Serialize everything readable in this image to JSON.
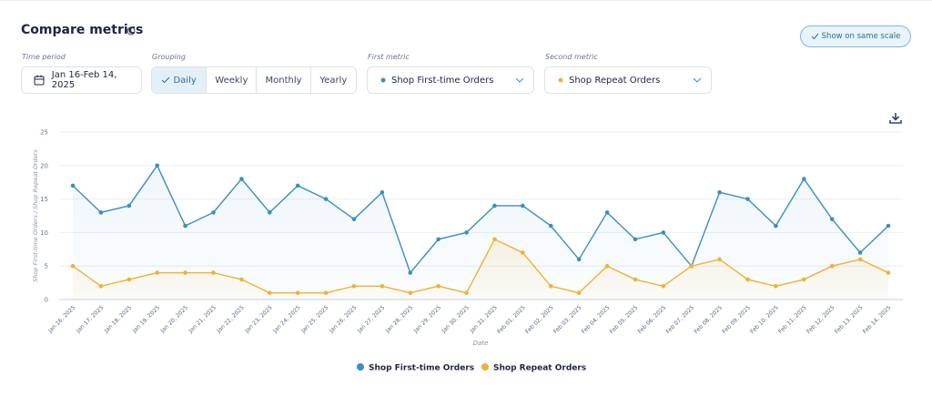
{
  "header": {
    "title": "Compare metrics",
    "button": "Show on same scale"
  },
  "filters": {
    "time_period": {
      "label": "Time period",
      "value": "Jan 16-Feb 14, 2025"
    },
    "grouping": {
      "label": "Grouping",
      "options": [
        "Daily",
        "Weekly",
        "Monthly",
        "Yearly"
      ]
    },
    "first_metric": {
      "label": "First metric",
      "value": "Shop First-time Orders"
    },
    "second_metric": {
      "label": "Second metric",
      "value": "Shop Repeat Orders"
    }
  },
  "chart_data": {
    "type": "line",
    "x_label": "Date",
    "y_label": "Shop First-time Orders / Shop Repeat Orders",
    "categories": [
      "Jan 16, 2025",
      "Jan 17, 2025",
      "Jan 18, 2025",
      "Jan 19, 2025",
      "Jan 20, 2025",
      "Jan 21, 2025",
      "Jan 22, 2025",
      "Jan 23, 2025",
      "Jan 24, 2025",
      "Jan 25, 2025",
      "Jan 26, 2025",
      "Jan 27, 2025",
      "Jan 28, 2025",
      "Jan 29, 2025",
      "Jan 30, 2025",
      "Jan 31, 2025",
      "Feb 01, 2025",
      "Feb 02, 2025",
      "Feb 03, 2025",
      "Feb 04, 2025",
      "Feb 05, 2025",
      "Feb 06, 2025",
      "Feb 07, 2025",
      "Feb 08, 2025",
      "Feb 09, 2025",
      "Feb 10, 2025",
      "Feb 11, 2025",
      "Feb 12, 2025",
      "Feb 13, 2025",
      "Feb 14, 2025"
    ],
    "series": [
      {
        "name": "Shop First-time Orders",
        "color": "#3a8ec3",
        "values": [
          17,
          13,
          14,
          20,
          11,
          13,
          18,
          13,
          17,
          15,
          12,
          16,
          4,
          9,
          10,
          14,
          14,
          11,
          6,
          13,
          9,
          10,
          5,
          16,
          15,
          11,
          18,
          12,
          7,
          11
        ]
      },
      {
        "name": "Shop Repeat Orders",
        "color": "#f0b132",
        "values": [
          5,
          2,
          3,
          4,
          4,
          4,
          3,
          1,
          1,
          1,
          2,
          2,
          1,
          2,
          1,
          9,
          7,
          2,
          1,
          5,
          3,
          2,
          5,
          6,
          3,
          2,
          3,
          5,
          6,
          4
        ]
      }
    ],
    "ylim": [
      0,
      25
    ],
    "yticks": [
      0,
      5,
      10,
      15,
      20,
      25
    ],
    "grid": true
  }
}
